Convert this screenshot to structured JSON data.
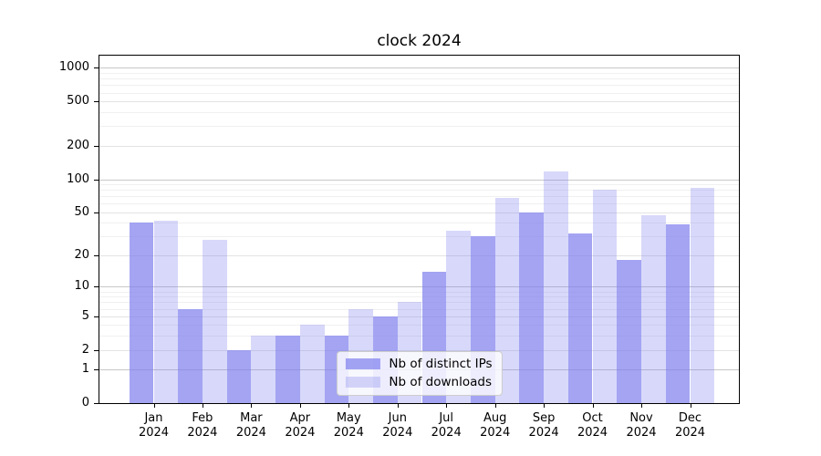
{
  "title": "clock 2024",
  "chart_data": {
    "type": "bar",
    "title": "clock 2024",
    "categories": [
      "Jan",
      "Feb",
      "Mar",
      "Apr",
      "May",
      "Jun",
      "Jul",
      "Aug",
      "Sep",
      "Oct",
      "Nov",
      "Dec"
    ],
    "x_tick_second_line": "2024",
    "series": [
      {
        "name": "Nb of distinct IPs",
        "color": "rgba(125,125,238,0.7)",
        "values": [
          40,
          6,
          2,
          3,
          3,
          5,
          14,
          30,
          50,
          32,
          18,
          39
        ]
      },
      {
        "name": "Nb of downloads",
        "color": "rgba(125,125,238,0.3)",
        "values": [
          42,
          28,
          3,
          4,
          6,
          7,
          34,
          68,
          118,
          80,
          47,
          83
        ]
      }
    ],
    "y_scale": "log(value+1)",
    "ylim": [
      0,
      1311
    ],
    "y_tick_labels": [
      "0",
      "1",
      "2",
      "5",
      "10",
      "20",
      "50",
      "100",
      "200",
      "500",
      "1000"
    ],
    "y_tick_values": [
      0,
      1,
      2,
      5,
      10,
      20,
      50,
      100,
      200,
      500,
      1000
    ],
    "y_ticks_decade": [
      1,
      10,
      100,
      1000
    ],
    "y_ticks_mid": [
      2,
      5,
      20,
      50,
      200,
      500
    ],
    "y_ticks_minor": [
      3,
      4,
      6,
      7,
      8,
      9,
      30,
      40,
      60,
      70,
      80,
      90,
      300,
      400,
      600,
      700,
      800,
      900
    ],
    "grid": true,
    "legend_position": "lower center",
    "colors": {
      "bar_distinct_ips": "rgba(125,125,238,0.7)",
      "bar_downloads": "rgba(125,125,238,0.3)",
      "grid_major": "#c8c8c8",
      "grid_mid": "#e3e3e3",
      "grid_minor": "#f0f0f0",
      "spine": "#000000",
      "legend_border": "#cccccc",
      "background": "#ffffff"
    }
  }
}
